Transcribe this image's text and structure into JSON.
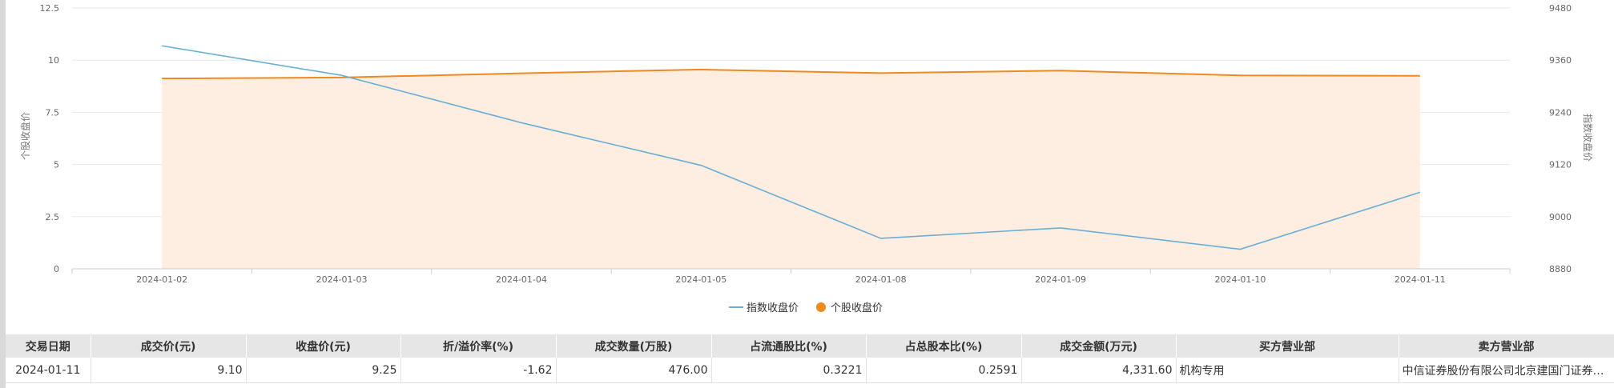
{
  "chart_data": {
    "type": "line",
    "categories": [
      "2024-01-02",
      "2024-01-03",
      "2024-01-04",
      "2024-01-05",
      "2024-01-08",
      "2024-01-09",
      "2024-01-10",
      "2024-01-11"
    ],
    "series": [
      {
        "name": "指数收盘价",
        "axis": "right",
        "style": "line",
        "color": "#6aaed6",
        "values": [
          9393,
          9325,
          9216,
          9118,
          8950,
          8974,
          8925,
          9056
        ]
      },
      {
        "name": "个股收盘价",
        "axis": "left",
        "style": "area",
        "color": "#f0891e",
        "fill": "#fdeee1",
        "values": [
          9.12,
          9.17,
          9.37,
          9.55,
          9.38,
          9.5,
          9.27,
          9.25
        ]
      }
    ],
    "y_left": {
      "label": "个股收盘价",
      "min": 0,
      "max": 12.5,
      "ticks": [
        "0",
        "2.5",
        "5",
        "7.5",
        "10",
        "12.5"
      ]
    },
    "y_right": {
      "label": "指数收盘价",
      "min": 8880,
      "max": 9480,
      "ticks": [
        "8880",
        "9000",
        "9120",
        "9240",
        "9360",
        "9480"
      ]
    },
    "legend_position": "bottom-center",
    "grid": true
  },
  "table": {
    "headers": [
      "交易日期",
      "成交价(元)",
      "收盘价(元)",
      "折/溢价率(%)",
      "成交数量(万股)",
      "占流通股比(%)",
      "占总股本比(%)",
      "成交金额(万元)",
      "买方营业部",
      "卖方营业部"
    ],
    "rows": [
      [
        "2024-01-11",
        "9.10",
        "9.25",
        "-1.62",
        "476.00",
        "0.3221",
        "0.2591",
        "4,331.60",
        "机构专用",
        "中信证券股份有限公司北京建国门证券营业部"
      ]
    ]
  }
}
